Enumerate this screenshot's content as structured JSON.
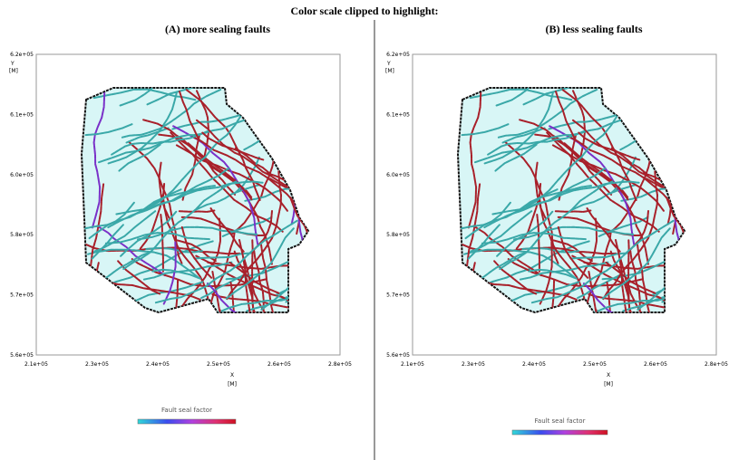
{
  "title": "Color scale clipped to highlight:",
  "panels": [
    {
      "label": "(A) more sealing faults",
      "y_axis": {
        "name": "Y",
        "unit": "[M]",
        "ticks": [
          "6.2e+05",
          "6.1e+05",
          "6.0e+05",
          "5.8e+05",
          "5.7e+05",
          "5.6e+05"
        ]
      },
      "x_axis": {
        "name": "X",
        "unit": "[M]",
        "ticks": [
          "2.1e+05",
          "2.3e+05",
          "2.4e+05",
          "2.5e+05",
          "2.6e+05",
          "2.8e+05"
        ]
      },
      "colorbar": {
        "label": "Fault seal factor"
      }
    },
    {
      "label": "(B) less sealing faults",
      "y_axis": {
        "name": "Y",
        "unit": "[M]",
        "ticks": [
          "6.2e+05",
          "6.1e+05",
          "6.0e+05",
          "5.8e+05",
          "5.7e+05",
          "5.6e+05"
        ]
      },
      "x_axis": {
        "name": "X",
        "unit": "[M]",
        "ticks": [
          "2.1e+05",
          "2.3e+05",
          "2.4e+05",
          "2.5e+05",
          "2.6e+05",
          "2.8e+05"
        ]
      },
      "colorbar": {
        "label": "Fault seal factor"
      }
    }
  ]
}
